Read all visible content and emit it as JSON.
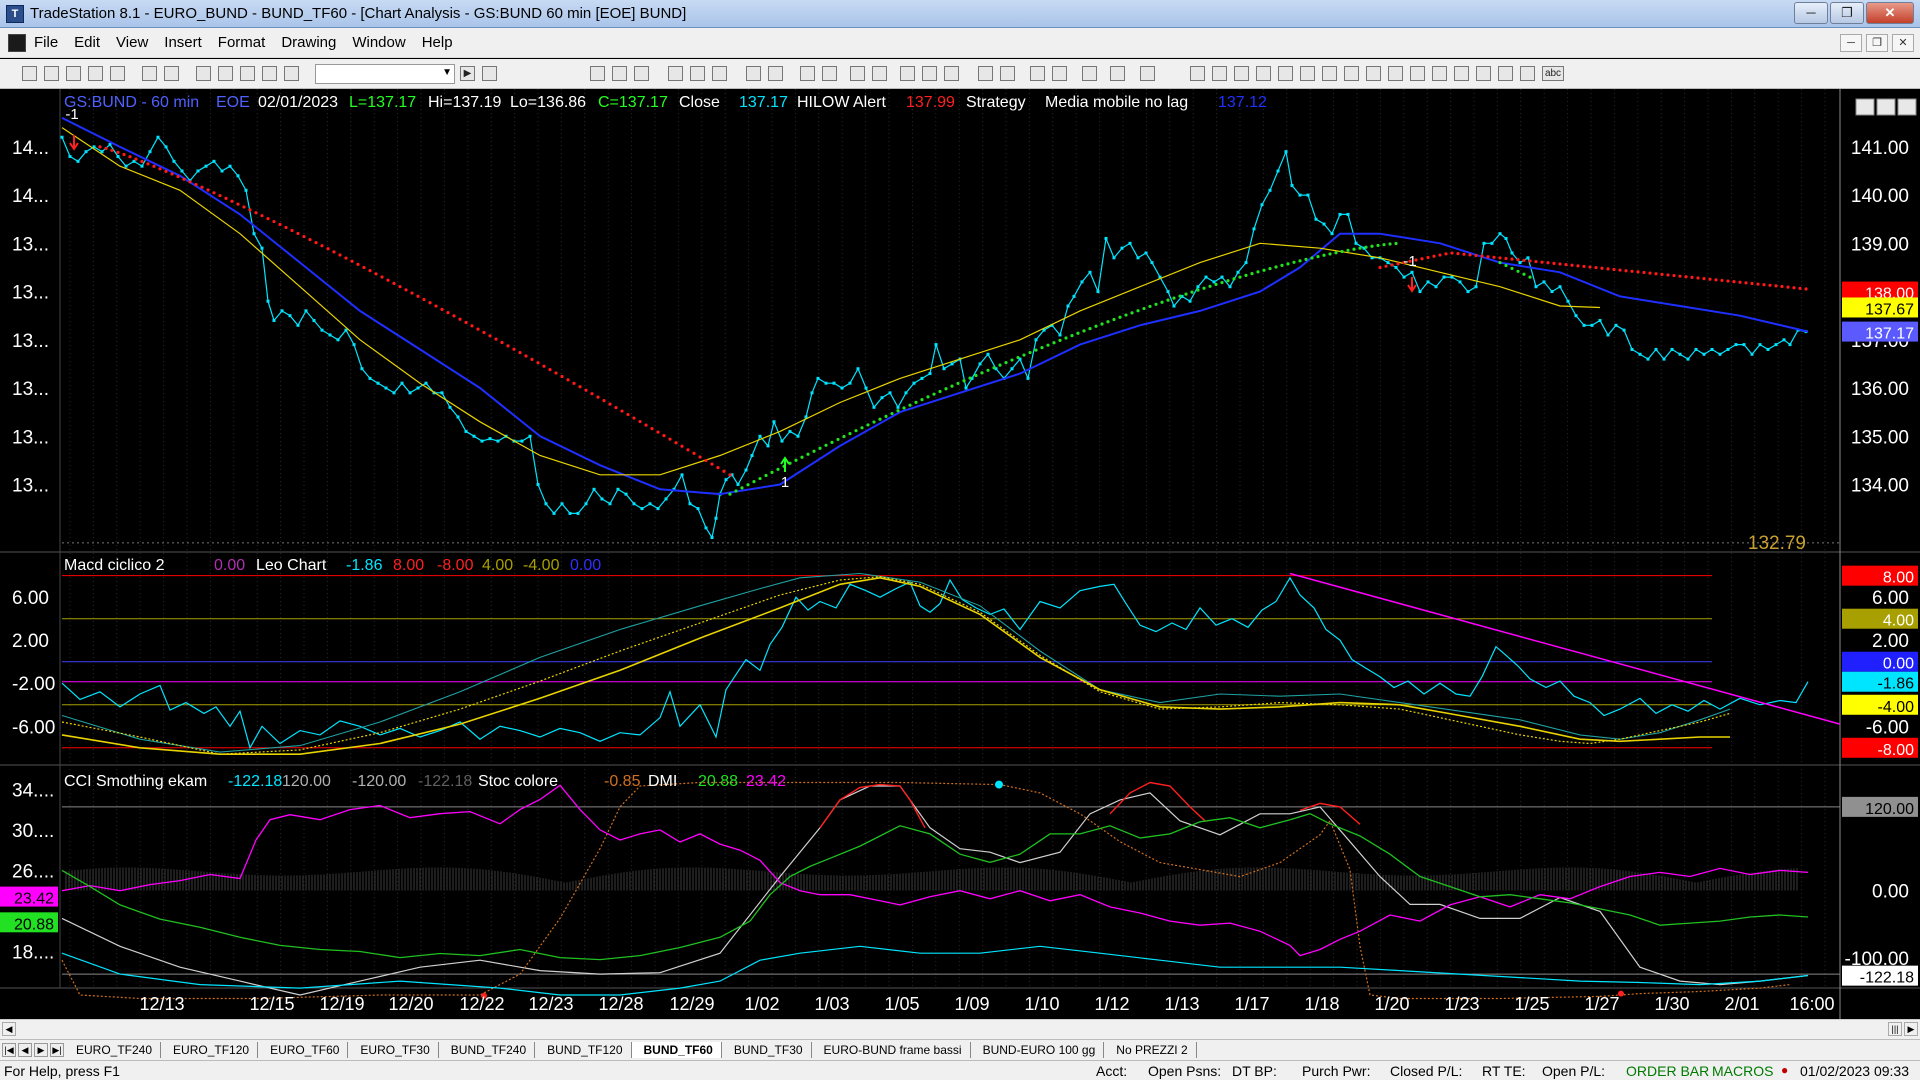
{
  "window": {
    "title": "TradeStation 8.1 - EURO_BUND - BUND_TF60 - [Chart Analysis - GS:BUND  60 min  [EOE] BUND]"
  },
  "menu": [
    "File",
    "Edit",
    "View",
    "Insert",
    "Format",
    "Drawing",
    "Window",
    "Help"
  ],
  "toolbar": {
    "combo_value": ""
  },
  "chart": {
    "header": {
      "symbol": "GS:BUND - 60 min",
      "session": "EOE",
      "date": "02/01/2023",
      "last": "L=137.17",
      "hi": "Hi=137.19",
      "lo": "Lo=136.86",
      "close": "C=137.17",
      "close_label": "Close",
      "close_val": "137.17",
      "hilow_label": "HILOW Alert",
      "hilow_val": "137.99",
      "strategy_label": "Strategy",
      "media_label": "Media mobile no lag",
      "media_val": "137.12"
    },
    "price_axis": [
      "141.00",
      "140.00",
      "139.00",
      "138.00",
      "137.00",
      "136.00",
      "135.00",
      "134.00"
    ],
    "price_left_axis": [
      "14...",
      "14...",
      "13...",
      "13...",
      "13...",
      "13...",
      "13...",
      "13..."
    ],
    "price_tags": {
      "red": "138.00",
      "yellow": "137.67",
      "blue": "137.17",
      "low": "132.79"
    },
    "trade_marks": {
      "sell1": "-1",
      "buy": "1",
      "sell2": "-1"
    },
    "macd": {
      "label": "Macd ciclico 2",
      "v1": "0.00",
      "leo_label": "Leo Chart",
      "v2": "-1.86",
      "v3": "8.00",
      "v4": "-8.00",
      "v5": "4.00",
      "v6": "-4.00",
      "v7": "0.00",
      "left_axis": [
        "6.00",
        "2.00",
        "-2.00",
        "-6.00"
      ],
      "right_axis": [
        "6.00",
        "2.00"
      ],
      "tags": {
        "t8": "8.00",
        "t4": "4.00",
        "t0": "0.00",
        "t186": "-1.86",
        "tm4": "-4.00",
        "tm6": "-6.00",
        "tm8": "-8.00"
      }
    },
    "cci": {
      "label": "CCI Smothing ekam",
      "v1": "-122.18",
      "v2": "120.00",
      "v3": "-120.00",
      "v4": "-122.18",
      "stoc_label": "Stoc colore",
      "stoc_val": "-0.85",
      "dmi_label": "DMI",
      "dmi1": "20.88",
      "dmi2": "23.42",
      "left_axis": [
        "34....",
        "30....",
        "26....",
        "18...."
      ],
      "left_tags": {
        "magenta": "23.42",
        "green": "20.88"
      },
      "right_axis": [
        "0.00"
      ],
      "right_tags": {
        "t120": "120.00",
        "tm100": "-100.00",
        "tm122": "-122.18"
      }
    },
    "x_axis": [
      "12/13",
      "12/15",
      "12/19",
      "12/20",
      "12/22",
      "12/23",
      "12/28",
      "12/29",
      "1/02",
      "1/03",
      "1/05",
      "1/09",
      "1/10",
      "1/12",
      "1/13",
      "1/17",
      "1/18",
      "1/20",
      "1/23",
      "1/25",
      "1/27",
      "1/30",
      "2/01",
      "16:00"
    ]
  },
  "tabs": [
    "EURO_TF240",
    "EURO_TF120",
    "EURO_TF60",
    "EURO_TF30",
    "BUND_TF240",
    "BUND_TF120",
    "BUND_TF60",
    "BUND_TF30",
    "EURO-BUND frame bassi",
    "BUND-EURO 100 gg",
    "No PREZZI 2"
  ],
  "active_tab": "BUND_TF60",
  "status": {
    "help": "For Help, press F1",
    "acct": "Acct:",
    "open_psns": "Open Psns:",
    "dt_bp": "DT BP:",
    "purch_pwr": "Purch Pwr:",
    "closed_pl": "Closed P/L:",
    "rt_te": "RT TE:",
    "open_pl": "Open P/L:",
    "order_bar": "ORDER BAR",
    "macros": "MACROS",
    "datetime": "01/02/2023 09:33"
  },
  "colors": {
    "background": "#000000",
    "price": "#00e5ff",
    "ma_blue": "#1f2fff",
    "ma_yellow": "#e8d300",
    "dots_red": "#ff1a1a",
    "dots_green": "#22e022",
    "magenta": "#ff00ff"
  }
}
